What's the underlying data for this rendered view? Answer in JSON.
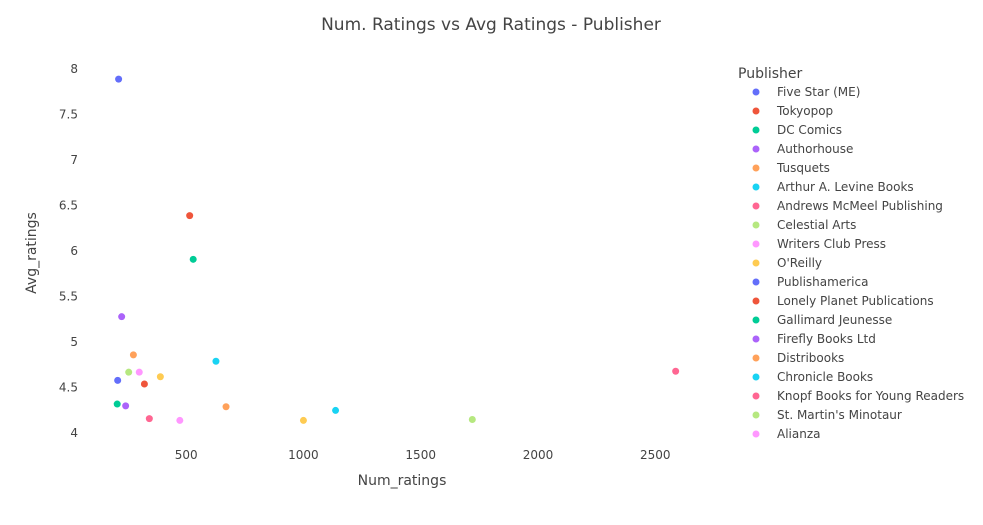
{
  "chart_data": {
    "type": "scatter",
    "title": "Num. Ratings vs Avg Ratings - Publisher",
    "xlabel": "Num_ratings",
    "ylabel": "Avg_ratings",
    "xlim": [
      90,
      2840
    ],
    "ylim": [
      3.87,
      8.1
    ],
    "x_ticks": [
      500,
      1000,
      1500,
      2000,
      2500
    ],
    "y_ticks": [
      4,
      4.5,
      5,
      5.5,
      6,
      6.5,
      7,
      7.5,
      8
    ],
    "x_tick_labels": [
      "500",
      "1000",
      "1500",
      "2000",
      "2500"
    ],
    "y_tick_labels": [
      "4",
      "4.5",
      "5",
      "5.5",
      "6",
      "6.5",
      "7",
      "7.5",
      "8"
    ],
    "grid": false,
    "legend": {
      "title": "Publisher",
      "position": "right"
    },
    "series": [
      {
        "name": "Five Star (ME)",
        "color": "#636efa",
        "points": [
          [
            212,
            7.89
          ]
        ]
      },
      {
        "name": "Tokyopop",
        "color": "#EF553B",
        "points": [
          [
            515,
            6.39
          ]
        ]
      },
      {
        "name": "DC Comics",
        "color": "#00cc96",
        "points": [
          [
            530,
            5.91
          ]
        ]
      },
      {
        "name": "Authorhouse",
        "color": "#ab63fa",
        "points": [
          [
            225,
            5.28
          ]
        ]
      },
      {
        "name": "Tusquets",
        "color": "#FFA15A",
        "points": [
          [
            275,
            4.86
          ]
        ]
      },
      {
        "name": "Arthur A. Levine Books",
        "color": "#19d3f3",
        "points": [
          [
            627,
            4.79
          ]
        ]
      },
      {
        "name": "Andrews McMeel Publishing",
        "color": "#FF6692",
        "points": [
          [
            2587,
            4.68
          ]
        ]
      },
      {
        "name": "Celestial Arts",
        "color": "#B6E880",
        "points": [
          [
            255,
            4.67
          ]
        ]
      },
      {
        "name": "Writers Club Press",
        "color": "#FF97FF",
        "points": [
          [
            300,
            4.67
          ]
        ]
      },
      {
        "name": "O'Reilly",
        "color": "#FECB52",
        "points": [
          [
            390,
            4.62
          ]
        ]
      },
      {
        "name": "Publishamerica",
        "color": "#636efa",
        "points": [
          [
            208,
            4.58
          ]
        ]
      },
      {
        "name": "Lonely Planet Publications",
        "color": "#EF553B",
        "points": [
          [
            322,
            4.54
          ]
        ]
      },
      {
        "name": "Gallimard Jeunesse",
        "color": "#00cc96",
        "points": [
          [
            206,
            4.32
          ]
        ]
      },
      {
        "name": "Firefly Books Ltd",
        "color": "#ab63fa",
        "points": [
          [
            242,
            4.3
          ]
        ]
      },
      {
        "name": "Distribooks",
        "color": "#FFA15A",
        "points": [
          [
            670,
            4.29
          ]
        ]
      },
      {
        "name": "Chronicle Books",
        "color": "#19d3f3",
        "points": [
          [
            1137,
            4.25
          ]
        ]
      },
      {
        "name": "Knopf Books for Young Readers",
        "color": "#FF6692",
        "points": [
          [
            343,
            4.16
          ]
        ]
      },
      {
        "name": "St. Martin's Minotaur",
        "color": "#B6E880",
        "points": [
          [
            1720,
            4.15
          ]
        ]
      },
      {
        "name": "Alianza",
        "color": "#FF97FF",
        "points": [
          [
            473,
            4.14
          ]
        ]
      },
      {
        "name": "O'Reilly",
        "color": "#FECB52",
        "points": [
          [
            1000,
            4.14
          ]
        ]
      }
    ]
  }
}
